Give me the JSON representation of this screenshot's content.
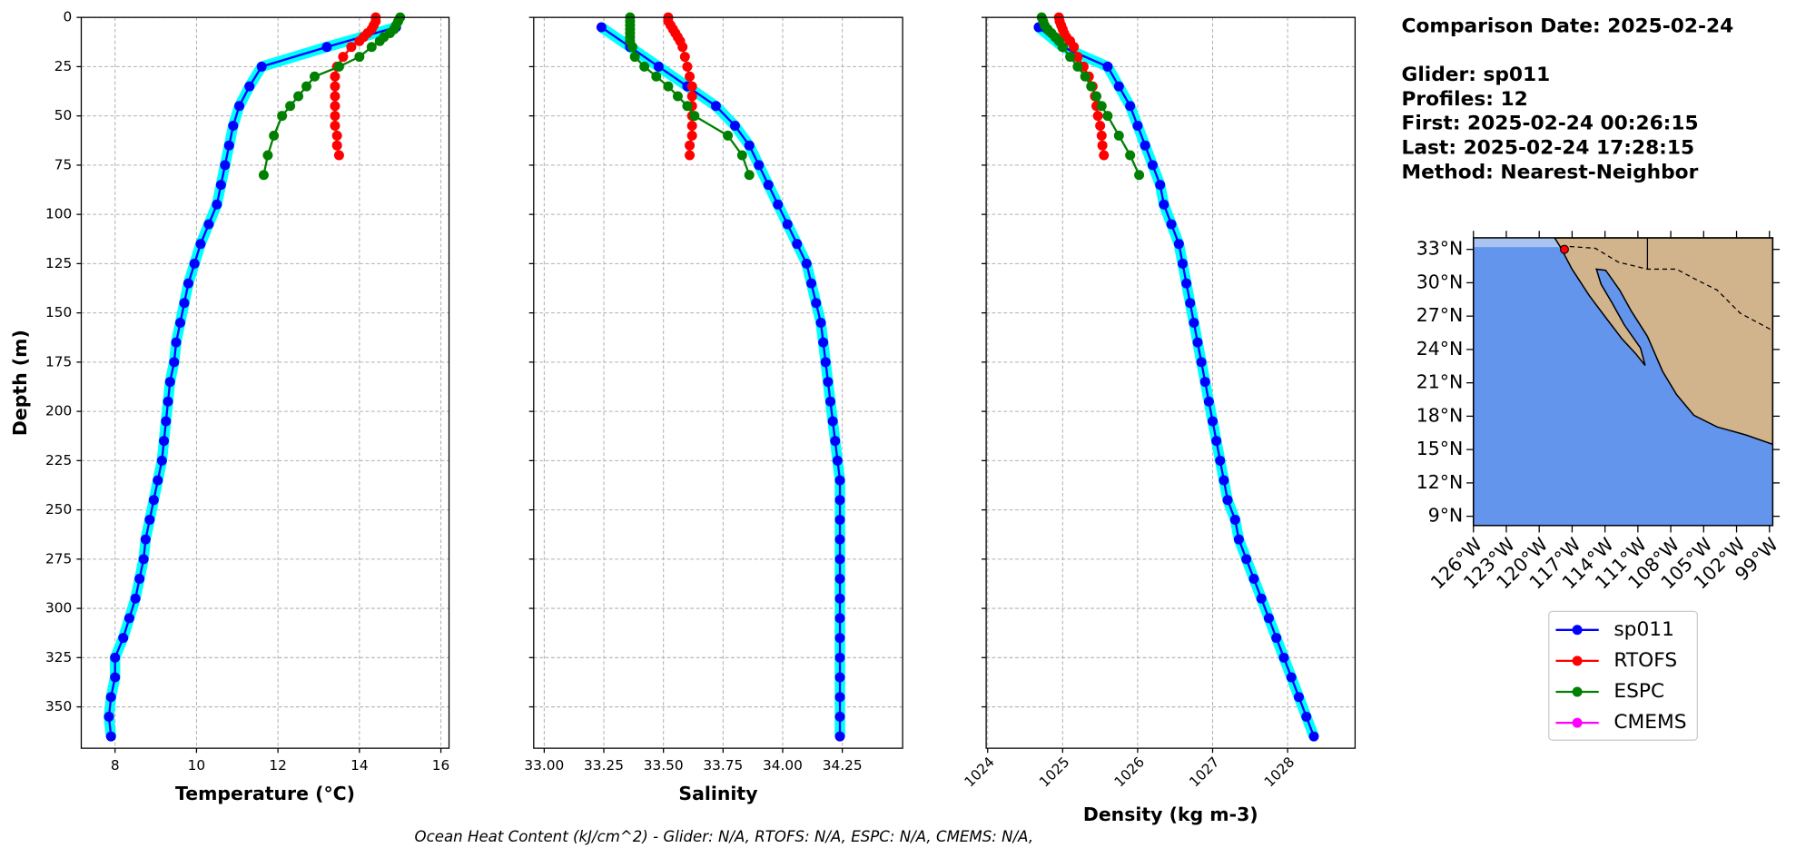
{
  "chart_data": [
    {
      "type": "line",
      "xlabel": "Temperature (°C)",
      "ylabel": "Depth (m)",
      "xlim": [
        7.17,
        16.2
      ],
      "xticks": [
        8,
        10,
        12,
        14,
        16
      ],
      "ylim": [
        371,
        0
      ],
      "yticks": [
        0,
        25,
        50,
        75,
        100,
        125,
        150,
        175,
        200,
        225,
        250,
        275,
        300,
        325,
        350
      ],
      "show_ytick_labels": true,
      "grid": true,
      "series": [
        {
          "name": "sp011",
          "color": "#0000ff",
          "halo_color": "#00ffff",
          "x": [
            14.9,
            13.2,
            11.6,
            11.3,
            11.05,
            10.9,
            10.8,
            10.7,
            10.6,
            10.5,
            10.3,
            10.1,
            9.95,
            9.8,
            9.7,
            9.6,
            9.5,
            9.45,
            9.35,
            9.3,
            9.25,
            9.2,
            9.15,
            9.05,
            8.95,
            8.85,
            8.75,
            8.7,
            8.6,
            8.5,
            8.35,
            8.2,
            8.0,
            8.0,
            7.9,
            7.85,
            7.9
          ],
          "y": [
            5,
            15,
            25,
            35,
            45,
            55,
            65,
            75,
            85,
            95,
            105,
            115,
            125,
            135,
            145,
            155,
            165,
            175,
            185,
            195,
            205,
            215,
            225,
            235,
            245,
            255,
            265,
            275,
            285,
            295,
            305,
            315,
            325,
            335,
            345,
            355,
            365
          ]
        },
        {
          "name": "RTOFS",
          "color": "#ff0000",
          "x": [
            14.4,
            14.4,
            14.35,
            14.3,
            14.2,
            14.1,
            14.0,
            13.8,
            13.6,
            13.45,
            13.4,
            13.4,
            13.4,
            13.4,
            13.4,
            13.4,
            13.45,
            13.45,
            13.5
          ],
          "y": [
            0,
            2,
            4,
            6,
            8,
            10,
            12,
            15,
            20,
            25,
            30,
            35,
            40,
            45,
            50,
            55,
            60,
            65,
            70
          ]
        },
        {
          "name": "ESPC",
          "color": "#008000",
          "x": [
            15.0,
            14.95,
            14.9,
            14.85,
            14.75,
            14.6,
            14.5,
            14.3,
            14.0,
            13.5,
            12.9,
            12.7,
            12.5,
            12.3,
            12.1,
            11.9,
            11.75,
            11.65
          ],
          "y": [
            0,
            2,
            4,
            6,
            8,
            10,
            12,
            15,
            20,
            25,
            30,
            35,
            40,
            45,
            50,
            60,
            70,
            80
          ]
        },
        {
          "name": "CMEMS",
          "color": "#ff00ff",
          "x": [],
          "y": []
        }
      ]
    },
    {
      "type": "line",
      "xlabel": "Salinity",
      "xlim": [
        32.956,
        34.503
      ],
      "xticks": [
        {
          "value": 33,
          "label": "33.00"
        },
        33.25,
        {
          "value": 33.5,
          "label": "33.50"
        },
        33.75,
        {
          "value": 34,
          "label": "34.00"
        },
        34.25
      ],
      "ylim": [
        371,
        0
      ],
      "yticks": [
        0,
        25,
        50,
        75,
        100,
        125,
        150,
        175,
        200,
        225,
        250,
        275,
        300,
        325,
        350
      ],
      "show_ytick_labels": false,
      "grid": true,
      "series": [
        {
          "color": "#0000ff",
          "halo_color": "#00ffff",
          "x": [
            33.24,
            33.36,
            33.48,
            33.6,
            33.72,
            33.8,
            33.86,
            33.9,
            33.94,
            33.98,
            34.02,
            34.06,
            34.1,
            34.12,
            34.14,
            34.16,
            34.17,
            34.18,
            34.19,
            34.2,
            34.21,
            34.22,
            34.23,
            34.24,
            34.24,
            34.24,
            34.24,
            34.24,
            34.24,
            34.24,
            34.24,
            34.24,
            34.24,
            34.24,
            34.24,
            34.24,
            34.24
          ],
          "y": [
            5,
            15,
            25,
            35,
            45,
            55,
            65,
            75,
            85,
            95,
            105,
            115,
            125,
            135,
            145,
            155,
            165,
            175,
            185,
            195,
            205,
            215,
            225,
            235,
            245,
            255,
            265,
            275,
            285,
            295,
            305,
            315,
            325,
            335,
            345,
            355,
            365
          ]
        },
        {
          "color": "#ff0000",
          "x": [
            33.52,
            33.52,
            33.53,
            33.54,
            33.55,
            33.56,
            33.57,
            33.58,
            33.59,
            33.6,
            33.61,
            33.62,
            33.62,
            33.62,
            33.62,
            33.62,
            33.62,
            33.61,
            33.61
          ],
          "y": [
            0,
            2,
            4,
            6,
            8,
            10,
            12,
            15,
            20,
            25,
            30,
            35,
            40,
            45,
            50,
            55,
            60,
            65,
            70
          ]
        },
        {
          "color": "#008000",
          "x": [
            33.36,
            33.36,
            33.36,
            33.36,
            33.36,
            33.36,
            33.36,
            33.37,
            33.38,
            33.42,
            33.47,
            33.52,
            33.56,
            33.6,
            33.63,
            33.77,
            33.83,
            33.86
          ],
          "y": [
            0,
            2,
            4,
            6,
            8,
            10,
            12,
            15,
            20,
            25,
            30,
            35,
            40,
            45,
            50,
            60,
            70,
            80
          ]
        }
      ]
    },
    {
      "type": "line",
      "xlabel": "Density (kg m-3)",
      "xlim": [
        1023.98,
        1028.9
      ],
      "xticks": [
        1024,
        1025,
        1026,
        1027,
        1028
      ],
      "xtick_rotation": 45,
      "ylim": [
        371,
        0
      ],
      "yticks": [
        0,
        25,
        50,
        75,
        100,
        125,
        150,
        175,
        200,
        225,
        250,
        275,
        300,
        325,
        350
      ],
      "show_ytick_labels": false,
      "grid": true,
      "series": [
        {
          "color": "#0000ff",
          "halo_color": "#00ffff",
          "x": [
            1024.68,
            1025.0,
            1025.6,
            1025.75,
            1025.9,
            1026.0,
            1026.1,
            1026.2,
            1026.3,
            1026.35,
            1026.45,
            1026.55,
            1026.6,
            1026.65,
            1026.7,
            1026.75,
            1026.8,
            1026.85,
            1026.9,
            1026.95,
            1027.0,
            1027.05,
            1027.1,
            1027.15,
            1027.2,
            1027.3,
            1027.35,
            1027.45,
            1027.55,
            1027.65,
            1027.75,
            1027.85,
            1027.95,
            1028.05,
            1028.15,
            1028.25,
            1028.35
          ],
          "y": [
            5,
            15,
            25,
            35,
            45,
            55,
            65,
            75,
            85,
            95,
            105,
            115,
            125,
            135,
            145,
            155,
            165,
            175,
            185,
            195,
            205,
            215,
            225,
            235,
            245,
            255,
            265,
            275,
            285,
            295,
            305,
            315,
            325,
            335,
            345,
            355,
            365
          ]
        },
        {
          "color": "#ff0000",
          "x": [
            1024.95,
            1024.96,
            1024.98,
            1025.0,
            1025.02,
            1025.05,
            1025.1,
            1025.15,
            1025.2,
            1025.28,
            1025.35,
            1025.4,
            1025.43,
            1025.45,
            1025.47,
            1025.5,
            1025.52,
            1025.53,
            1025.55
          ],
          "y": [
            0,
            2,
            4,
            6,
            8,
            10,
            12,
            15,
            20,
            25,
            30,
            35,
            40,
            45,
            50,
            55,
            60,
            65,
            70
          ]
        },
        {
          "color": "#008000",
          "x": [
            1024.72,
            1024.74,
            1024.76,
            1024.8,
            1024.85,
            1024.9,
            1024.95,
            1025.0,
            1025.1,
            1025.2,
            1025.3,
            1025.38,
            1025.45,
            1025.52,
            1025.6,
            1025.75,
            1025.9,
            1026.02
          ],
          "y": [
            0,
            2,
            4,
            6,
            8,
            10,
            12,
            15,
            20,
            25,
            30,
            35,
            40,
            45,
            50,
            60,
            70,
            80
          ]
        }
      ]
    },
    {
      "type": "map",
      "lonlim": [
        -126,
        -98.7
      ],
      "latlim": [
        8.17,
        34.04
      ],
      "latticks": [
        {
          "value": 33,
          "label": "33°N"
        },
        {
          "value": 30,
          "label": "30°N"
        },
        {
          "value": 27,
          "label": "27°N"
        },
        {
          "value": 24,
          "label": "24°N"
        },
        {
          "value": 21,
          "label": "21°N"
        },
        {
          "value": 18,
          "label": "18°N"
        },
        {
          "value": 15,
          "label": "15°N"
        },
        {
          "value": 12,
          "label": "12°N"
        },
        {
          "value": 9,
          "label": "9°N"
        }
      ],
      "lonticks": [
        {
          "value": -126,
          "label": "126°W"
        },
        {
          "value": -123,
          "label": "123°W"
        },
        {
          "value": -120,
          "label": "120°W"
        },
        {
          "value": -117,
          "label": "117°W"
        },
        {
          "value": -114,
          "label": "114°W"
        },
        {
          "value": -111,
          "label": "111°W"
        },
        {
          "value": -108,
          "label": "108°W"
        },
        {
          "value": -105,
          "label": "105°W"
        },
        {
          "value": -102,
          "label": "102°W"
        },
        {
          "value": -99,
          "label": "99°W"
        }
      ],
      "marker": {
        "lon": -117.7,
        "lat": 33,
        "color": "#ff0000"
      }
    }
  ],
  "info": [
    "Comparison Date: 2025-02-24",
    "Glider: sp011",
    "Profiles: 12",
    "First: 2025-02-24 00:26:15",
    "Last: 2025-02-24 17:28:15",
    "Method: Nearest-Neighbor"
  ],
  "footer": "Ocean Heat Content (kJ/cm^2) - Glider: N/A,  RTOFS: N/A,  ESPC: N/A,  CMEMS: N/A,"
}
